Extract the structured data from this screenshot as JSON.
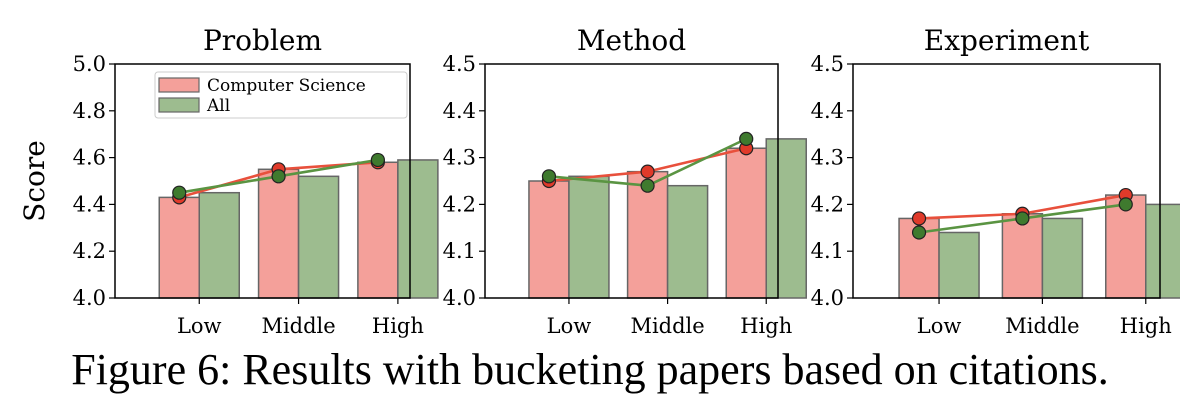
{
  "caption": "Figure 6: Results with bucketing papers based on citations.",
  "colors": {
    "cs_bar": "#f4a09a",
    "all_bar": "#9dbc8f",
    "cs_line": "#e8503c",
    "all_line": "#5a9442",
    "bar_edge": "#666666"
  },
  "chart_data": [
    {
      "type": "bar",
      "title": "Problem",
      "ylabel": "Score",
      "categories": [
        "Low",
        "Middle",
        "High"
      ],
      "ylim": [
        4.0,
        5.0
      ],
      "yticks": [
        "4.0",
        "4.2",
        "4.4",
        "4.6",
        "4.8",
        "5.0"
      ],
      "series": [
        {
          "name": "Computer Science",
          "values": [
            4.43,
            4.55,
            4.58
          ]
        },
        {
          "name": "All",
          "values": [
            4.45,
            4.52,
            4.59
          ]
        }
      ],
      "legend": "top-right",
      "overlay": "line with markers at bar values"
    },
    {
      "type": "bar",
      "title": "Method",
      "ylabel": "",
      "categories": [
        "Low",
        "Middle",
        "High"
      ],
      "ylim": [
        4.0,
        4.5
      ],
      "yticks": [
        "4.0",
        "4.1",
        "4.2",
        "4.3",
        "4.4",
        "4.5"
      ],
      "series": [
        {
          "name": "Computer Science",
          "values": [
            4.25,
            4.27,
            4.32
          ]
        },
        {
          "name": "All",
          "values": [
            4.26,
            4.24,
            4.34
          ]
        }
      ],
      "overlay": "line with markers at bar values"
    },
    {
      "type": "bar",
      "title": "Experiment",
      "ylabel": "",
      "categories": [
        "Low",
        "Middle",
        "High"
      ],
      "ylim": [
        4.0,
        4.5
      ],
      "yticks": [
        "4.0",
        "4.1",
        "4.2",
        "4.3",
        "4.4",
        "4.5"
      ],
      "series": [
        {
          "name": "Computer Science",
          "values": [
            4.17,
            4.18,
            4.22
          ]
        },
        {
          "name": "All",
          "values": [
            4.14,
            4.17,
            4.2
          ]
        }
      ],
      "overlay": "line with markers at bar values"
    }
  ]
}
